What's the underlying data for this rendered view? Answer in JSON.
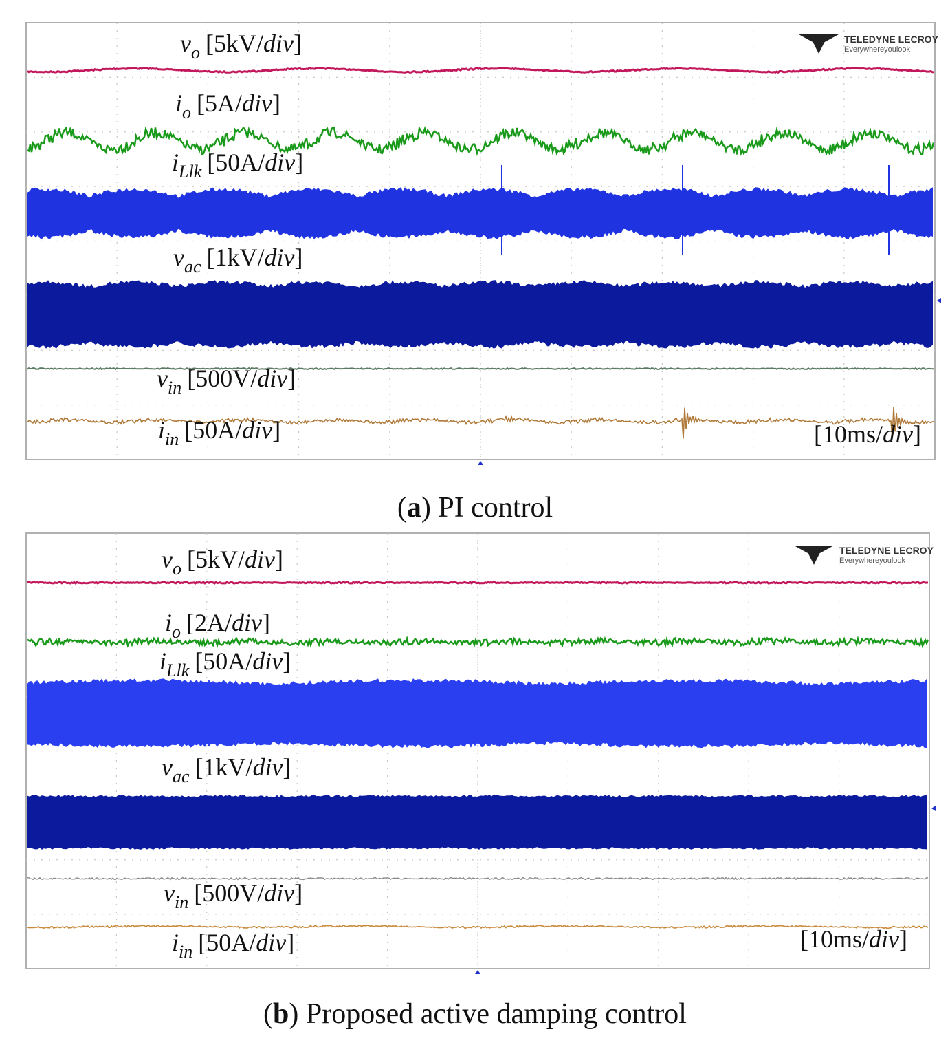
{
  "panels": [
    {
      "labels": [
        {
          "symbol": "v",
          "subscript": "o",
          "scale": "[5kV/",
          "unit": "div",
          "close": "]"
        },
        {
          "symbol": "i",
          "subscript": "o",
          "scale": "[5A/",
          "unit": "div",
          "close": "]"
        },
        {
          "symbol": "i",
          "subscript": "Llk",
          "scale": "[50A/",
          "unit": "div",
          "close": "]"
        },
        {
          "symbol": "v",
          "subscript": "ac",
          "scale": "[1kV/",
          "unit": "div",
          "close": "]"
        },
        {
          "symbol": "v",
          "subscript": "in",
          "scale": "[500V/",
          "unit": "div",
          "close": "]"
        },
        {
          "symbol": "i",
          "subscript": "in",
          "scale": "[50A/",
          "unit": "div",
          "close": "]"
        }
      ],
      "timebase": {
        "scale": "[10ms/",
        "unit": "div",
        "close": "]"
      },
      "logo": {
        "brand": "TELEDYNE LECROY",
        "tagline": "Everywhereyoulook"
      },
      "caption": {
        "open": "(",
        "letter": "a",
        "text": ") PI control"
      }
    },
    {
      "labels": [
        {
          "symbol": "v",
          "subscript": "o",
          "scale": "[5kV/",
          "unit": "div",
          "close": "]"
        },
        {
          "symbol": "i",
          "subscript": "o",
          "scale": "[2A/",
          "unit": "div",
          "close": "]"
        },
        {
          "symbol": "i",
          "subscript": "Llk",
          "scale": "[50A/",
          "unit": "div",
          "close": "]"
        },
        {
          "symbol": "v",
          "subscript": "ac",
          "scale": "[1kV/",
          "unit": "div",
          "close": "]"
        },
        {
          "symbol": "v",
          "subscript": "in",
          "scale": "[500V/",
          "unit": "div",
          "close": "]"
        },
        {
          "symbol": "i",
          "subscript": "in",
          "scale": "[50A/",
          "unit": "div",
          "close": "]"
        }
      ],
      "timebase": {
        "scale": "[10ms/",
        "unit": "div",
        "close": "]"
      },
      "logo": {
        "brand": "TELEDYNE LECROY",
        "tagline": "Everywhereyoulook"
      },
      "caption": {
        "open": "(",
        "letter": "b",
        "text": ") Proposed active damping control"
      }
    }
  ]
}
